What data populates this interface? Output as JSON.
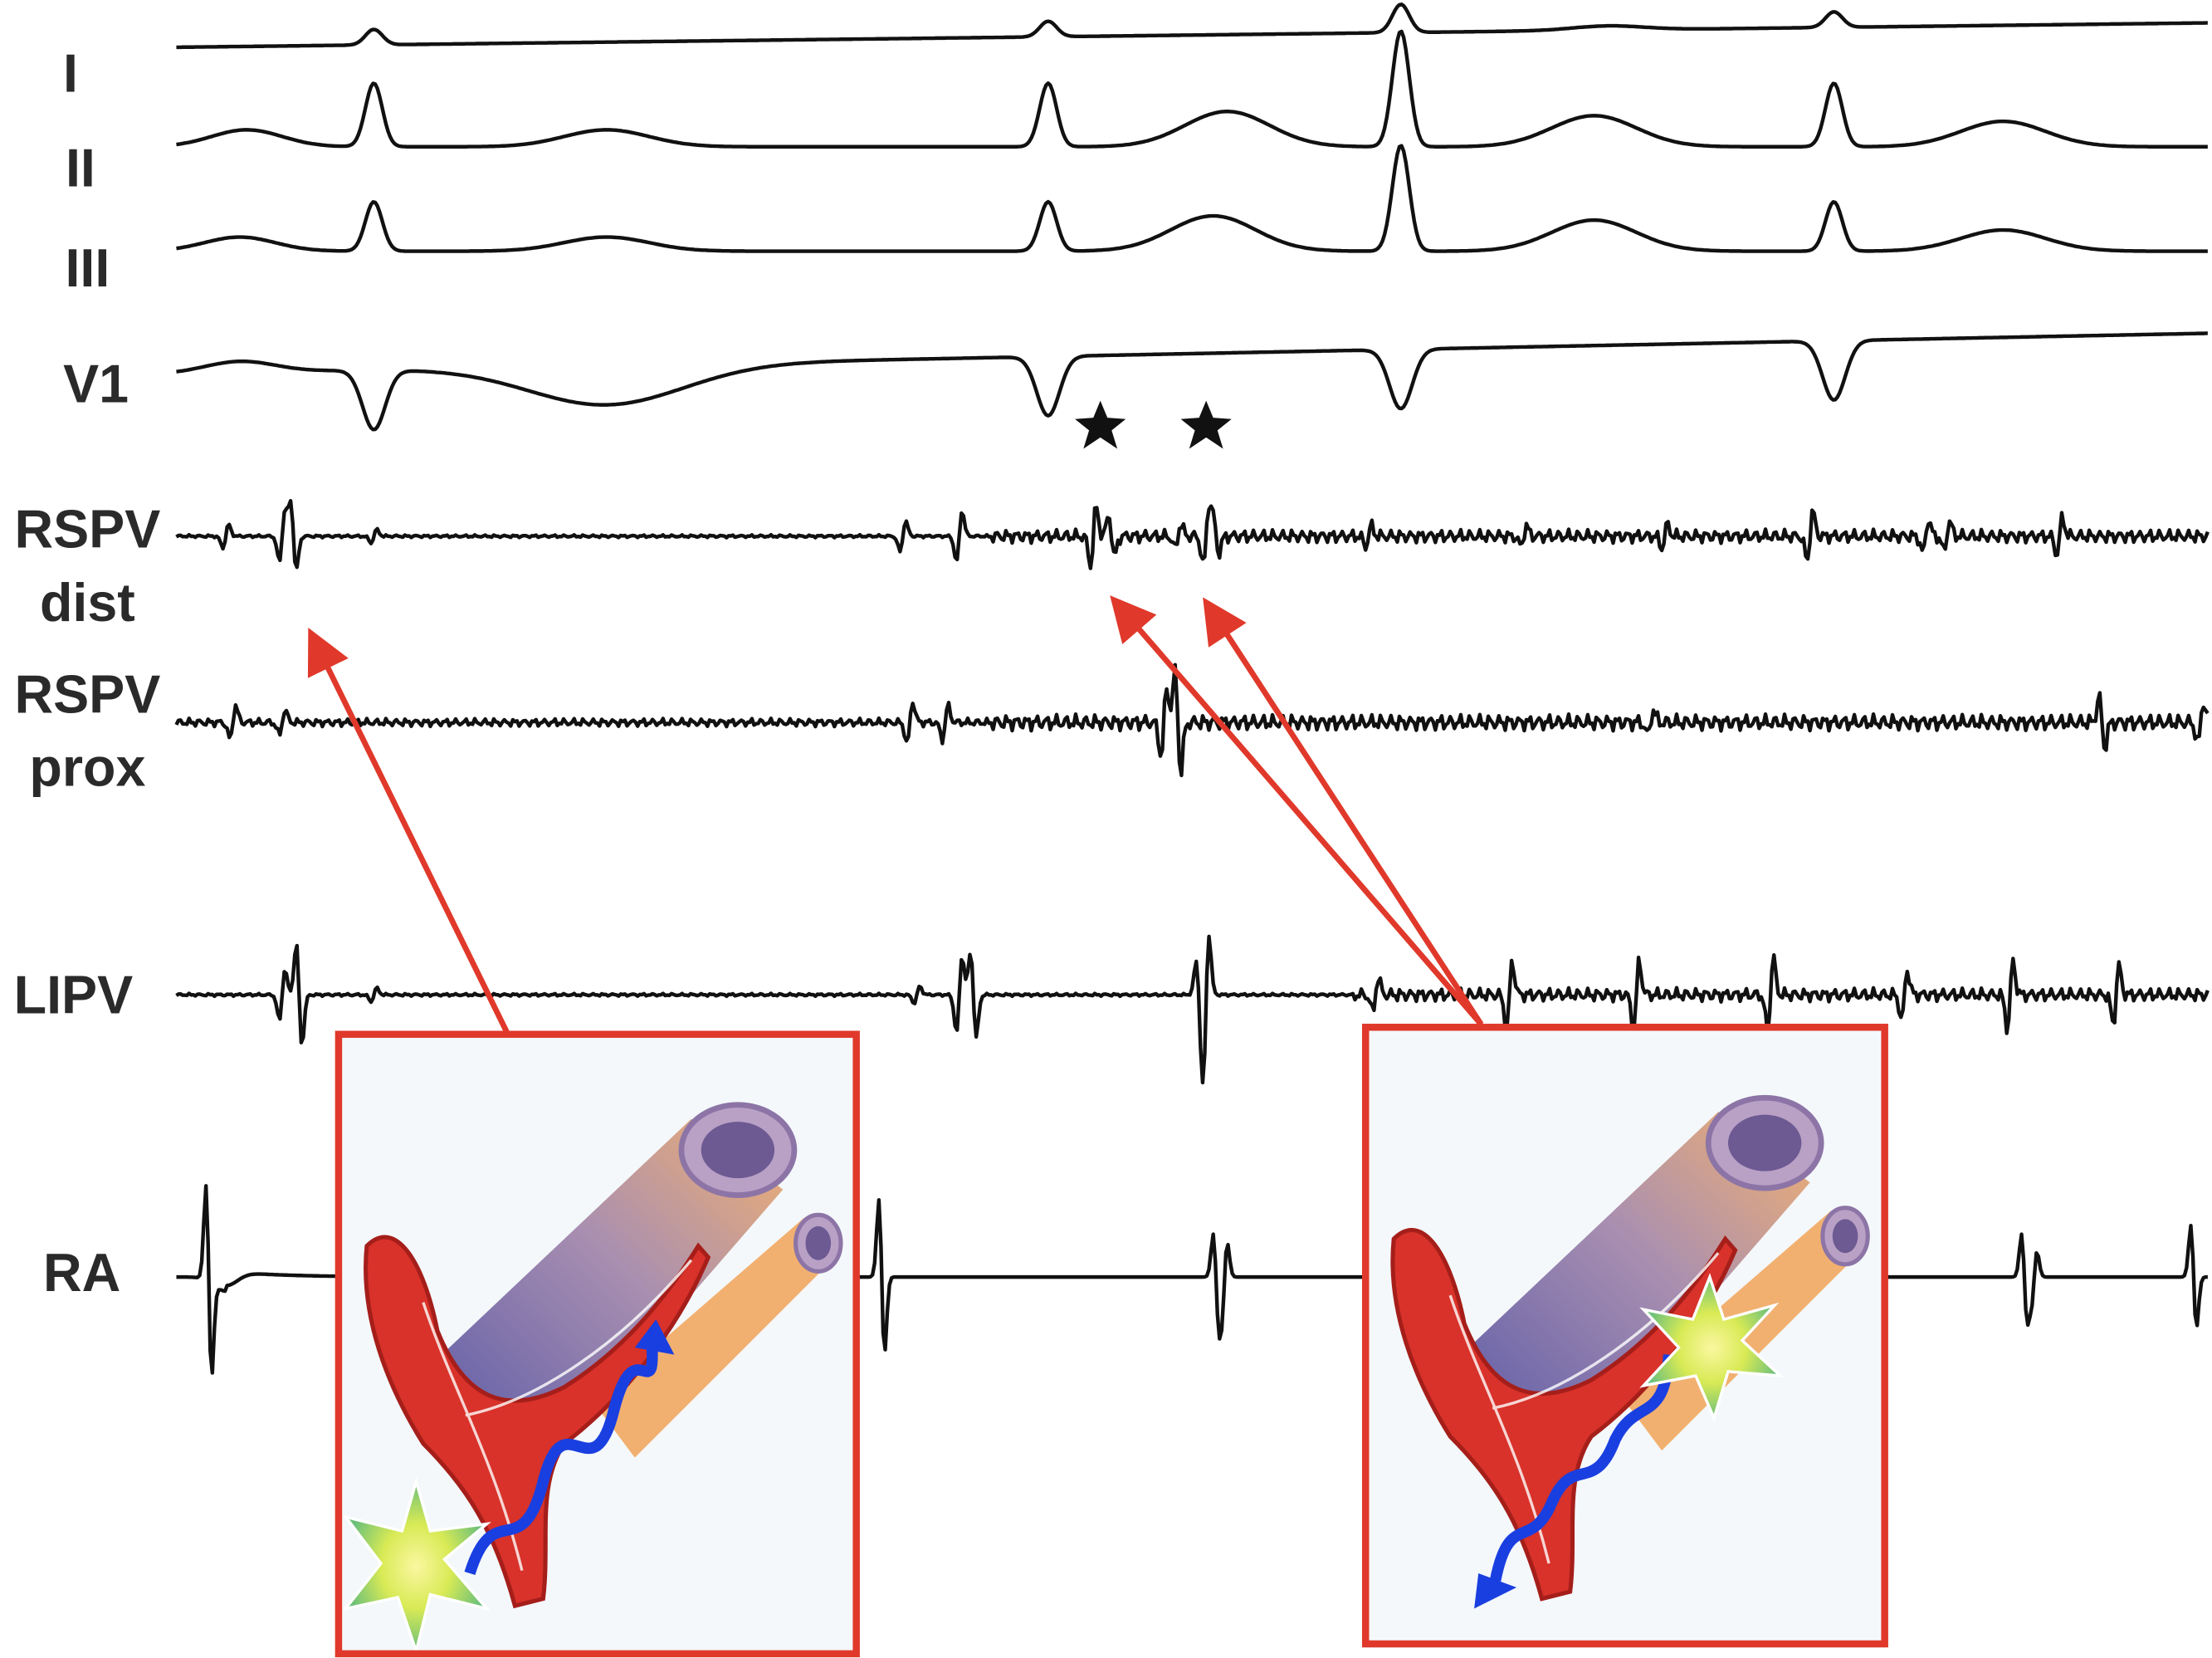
{
  "leads": [
    {
      "lines": [
        "I"
      ]
    },
    {
      "lines": [
        "II"
      ]
    },
    {
      "lines": [
        "III"
      ]
    },
    {
      "lines": [
        "V1"
      ]
    },
    {
      "lines": [
        "RSPV",
        "dist"
      ]
    },
    {
      "lines": [
        "RSPV",
        "prox"
      ]
    },
    {
      "lines": [
        "LIPV"
      ]
    },
    {
      "lines": [
        "RA"
      ]
    }
  ]
}
